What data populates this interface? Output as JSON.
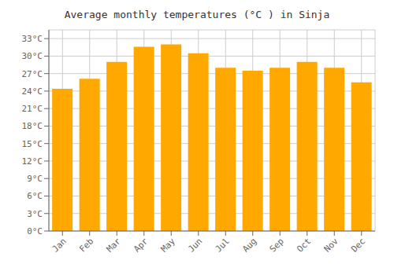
{
  "chart_data": {
    "type": "bar",
    "title": "Average monthly temperatures (°C ) in Sinja",
    "categories": [
      "Jan",
      "Feb",
      "Mar",
      "Apr",
      "May",
      "Jun",
      "Jul",
      "Aug",
      "Sep",
      "Oct",
      "Nov",
      "Dec"
    ],
    "values": [
      24.4,
      26.1,
      29.0,
      31.6,
      32.0,
      30.5,
      28.0,
      27.5,
      28.0,
      29.0,
      28.0,
      25.5
    ],
    "color": "#FFA800",
    "ylim": [
      0,
      34.5
    ],
    "yticks": [
      {
        "value": 0,
        "label": "0°C"
      },
      {
        "value": 3,
        "label": "3°C"
      },
      {
        "value": 6,
        "label": "6°C"
      },
      {
        "value": 9,
        "label": "9°C"
      },
      {
        "value": 12,
        "label": "12°C"
      },
      {
        "value": 15,
        "label": "15°C"
      },
      {
        "value": 18,
        "label": "18°C"
      },
      {
        "value": 21,
        "label": "21°C"
      },
      {
        "value": 24,
        "label": "24°C"
      },
      {
        "value": 27,
        "label": "27°C"
      },
      {
        "value": 30,
        "label": "30°C"
      },
      {
        "value": 33,
        "label": "33°C"
      }
    ],
    "grid": true
  }
}
